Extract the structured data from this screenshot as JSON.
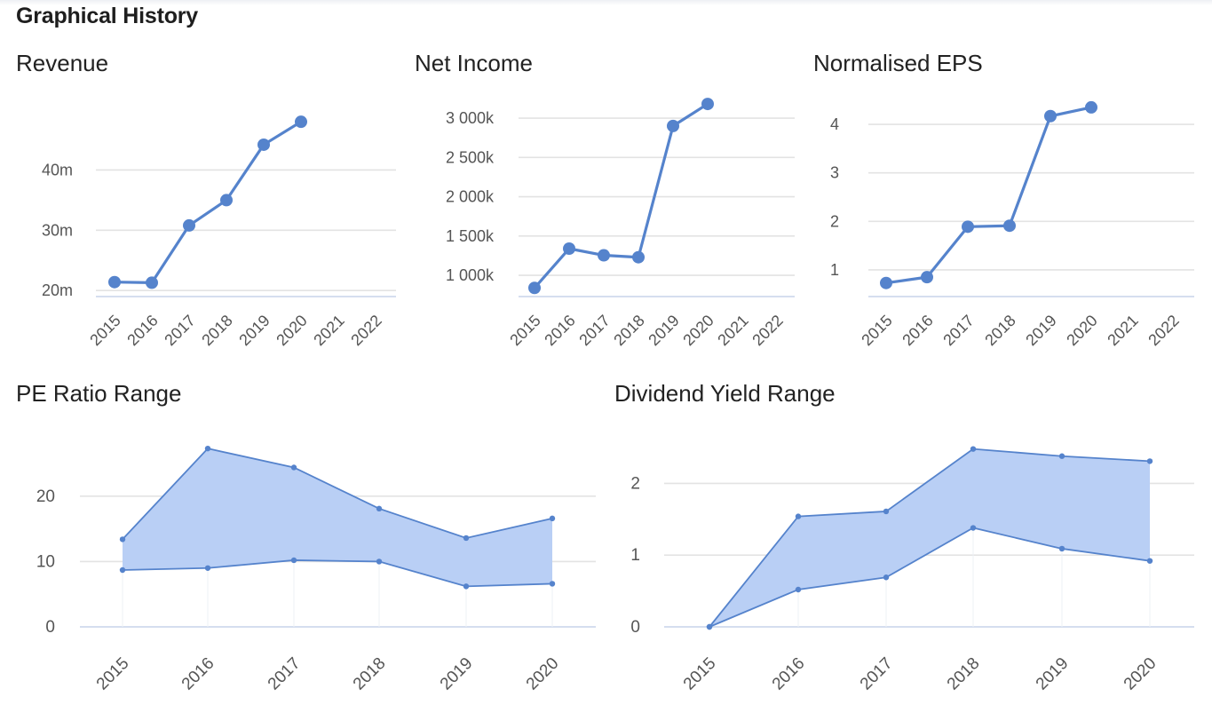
{
  "section": {
    "title": "Graphical History"
  },
  "chart_data": [
    {
      "id": "revenue",
      "type": "line",
      "title": "Revenue",
      "categories": [
        "2015",
        "2016",
        "2017",
        "2018",
        "2019",
        "2020",
        "2021",
        "2022"
      ],
      "series": [
        {
          "values": [
            21.4,
            21.3,
            30.8,
            35.0,
            44.2,
            48.0,
            null,
            null
          ]
        }
      ],
      "yticks": [
        20,
        30,
        40
      ],
      "ytick_labels": [
        "20m",
        "30m",
        "40m"
      ],
      "ylim": [
        19,
        52
      ],
      "color": "#5583cc",
      "grid": true
    },
    {
      "id": "net-income",
      "type": "line",
      "title": "Net Income",
      "categories": [
        "2015",
        "2016",
        "2017",
        "2018",
        "2019",
        "2020",
        "2021",
        "2022"
      ],
      "series": [
        {
          "values": [
            840,
            1340,
            1255,
            1230,
            2900,
            3180,
            null,
            null
          ]
        }
      ],
      "yticks": [
        1000,
        1500,
        2000,
        2500,
        3000
      ],
      "ytick_labels": [
        "1 000k",
        "1 500k",
        "2 000k",
        "2 500k",
        "3 000k"
      ],
      "ylim": [
        730,
        3260
      ],
      "color": "#5583cc",
      "grid": true
    },
    {
      "id": "normalised-eps",
      "type": "line",
      "title": "Normalised EPS",
      "categories": [
        "2015",
        "2016",
        "2017",
        "2018",
        "2019",
        "2020",
        "2021",
        "2022"
      ],
      "series": [
        {
          "values": [
            0.73,
            0.85,
            1.89,
            1.91,
            4.17,
            4.35,
            null,
            null
          ]
        }
      ],
      "yticks": [
        1,
        2,
        3,
        4
      ],
      "ytick_labels": [
        "1",
        "2",
        "3",
        "4"
      ],
      "ylim": [
        0.45,
        4.55
      ],
      "color": "#5583cc",
      "grid": true
    },
    {
      "id": "pe-ratio-range",
      "type": "area",
      "title": "PE Ratio Range",
      "categories": [
        "2015",
        "2016",
        "2017",
        "2018",
        "2019",
        "2020"
      ],
      "low": [
        8.7,
        9.0,
        10.2,
        10.0,
        6.2,
        6.6
      ],
      "high": [
        13.4,
        27.3,
        24.4,
        18.1,
        13.6,
        16.6
      ],
      "yticks": [
        0,
        10,
        20
      ],
      "ytick_labels": [
        "0",
        "10",
        "20"
      ],
      "ylim": [
        0,
        28
      ],
      "color": "#5583cc",
      "fill": "#b9cff5",
      "grid": true
    },
    {
      "id": "dividend-yield-range",
      "type": "area",
      "title": "Dividend Yield Range",
      "categories": [
        "2015",
        "2016",
        "2017",
        "2018",
        "2019",
        "2020"
      ],
      "low": [
        0.0,
        0.52,
        0.69,
        1.38,
        1.09,
        0.92
      ],
      "high": [
        0.0,
        1.54,
        1.61,
        2.48,
        2.38,
        2.31
      ],
      "yticks": [
        0,
        1,
        2
      ],
      "ytick_labels": [
        "0",
        "1",
        "2"
      ],
      "ylim": [
        0,
        2.55
      ],
      "color": "#5583cc",
      "fill": "#b9cff5",
      "grid": true
    }
  ]
}
